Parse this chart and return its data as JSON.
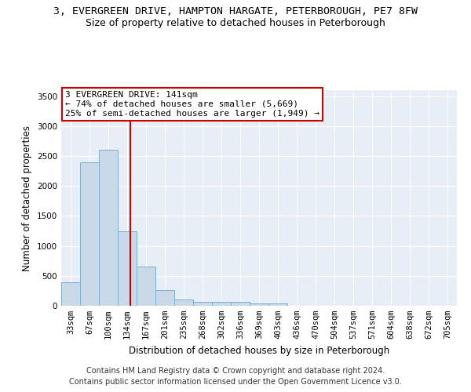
{
  "title_line1": "3, EVERGREEN DRIVE, HAMPTON HARGATE, PETERBOROUGH, PE7 8FW",
  "title_line2": "Size of property relative to detached houses in Peterborough",
  "xlabel": "Distribution of detached houses by size in Peterborough",
  "ylabel": "Number of detached properties",
  "categories": [
    "33sqm",
    "67sqm",
    "100sqm",
    "134sqm",
    "167sqm",
    "201sqm",
    "235sqm",
    "268sqm",
    "302sqm",
    "336sqm",
    "369sqm",
    "403sqm",
    "436sqm",
    "470sqm",
    "504sqm",
    "537sqm",
    "571sqm",
    "604sqm",
    "638sqm",
    "672sqm",
    "705sqm"
  ],
  "values": [
    390,
    2400,
    2600,
    1250,
    650,
    260,
    100,
    60,
    60,
    60,
    40,
    40,
    0,
    0,
    0,
    0,
    0,
    0,
    0,
    0,
    0
  ],
  "bar_color": "#c9d9e8",
  "bar_edge_color": "#7bafd4",
  "vline_x": 3.18,
  "vline_color": "#cc0000",
  "annotation_line1": "3 EVERGREEN DRIVE: 141sqm",
  "annotation_line2": "← 74% of detached houses are smaller (5,669)",
  "annotation_line3": "25% of semi-detached houses are larger (1,949) →",
  "annotation_box_color": "#ffffff",
  "annotation_box_edge_color": "#cc0000",
  "ylim": [
    0,
    3600
  ],
  "yticks": [
    0,
    500,
    1000,
    1500,
    2000,
    2500,
    3000,
    3500
  ],
  "background_color": "#e8eef5",
  "footer_line1": "Contains HM Land Registry data © Crown copyright and database right 2024.",
  "footer_line2": "Contains public sector information licensed under the Open Government Licence v3.0.",
  "title_fontsize": 9.5,
  "subtitle_fontsize": 9,
  "axis_label_fontsize": 8.5,
  "tick_fontsize": 7.5,
  "annotation_fontsize": 8,
  "footer_fontsize": 7
}
